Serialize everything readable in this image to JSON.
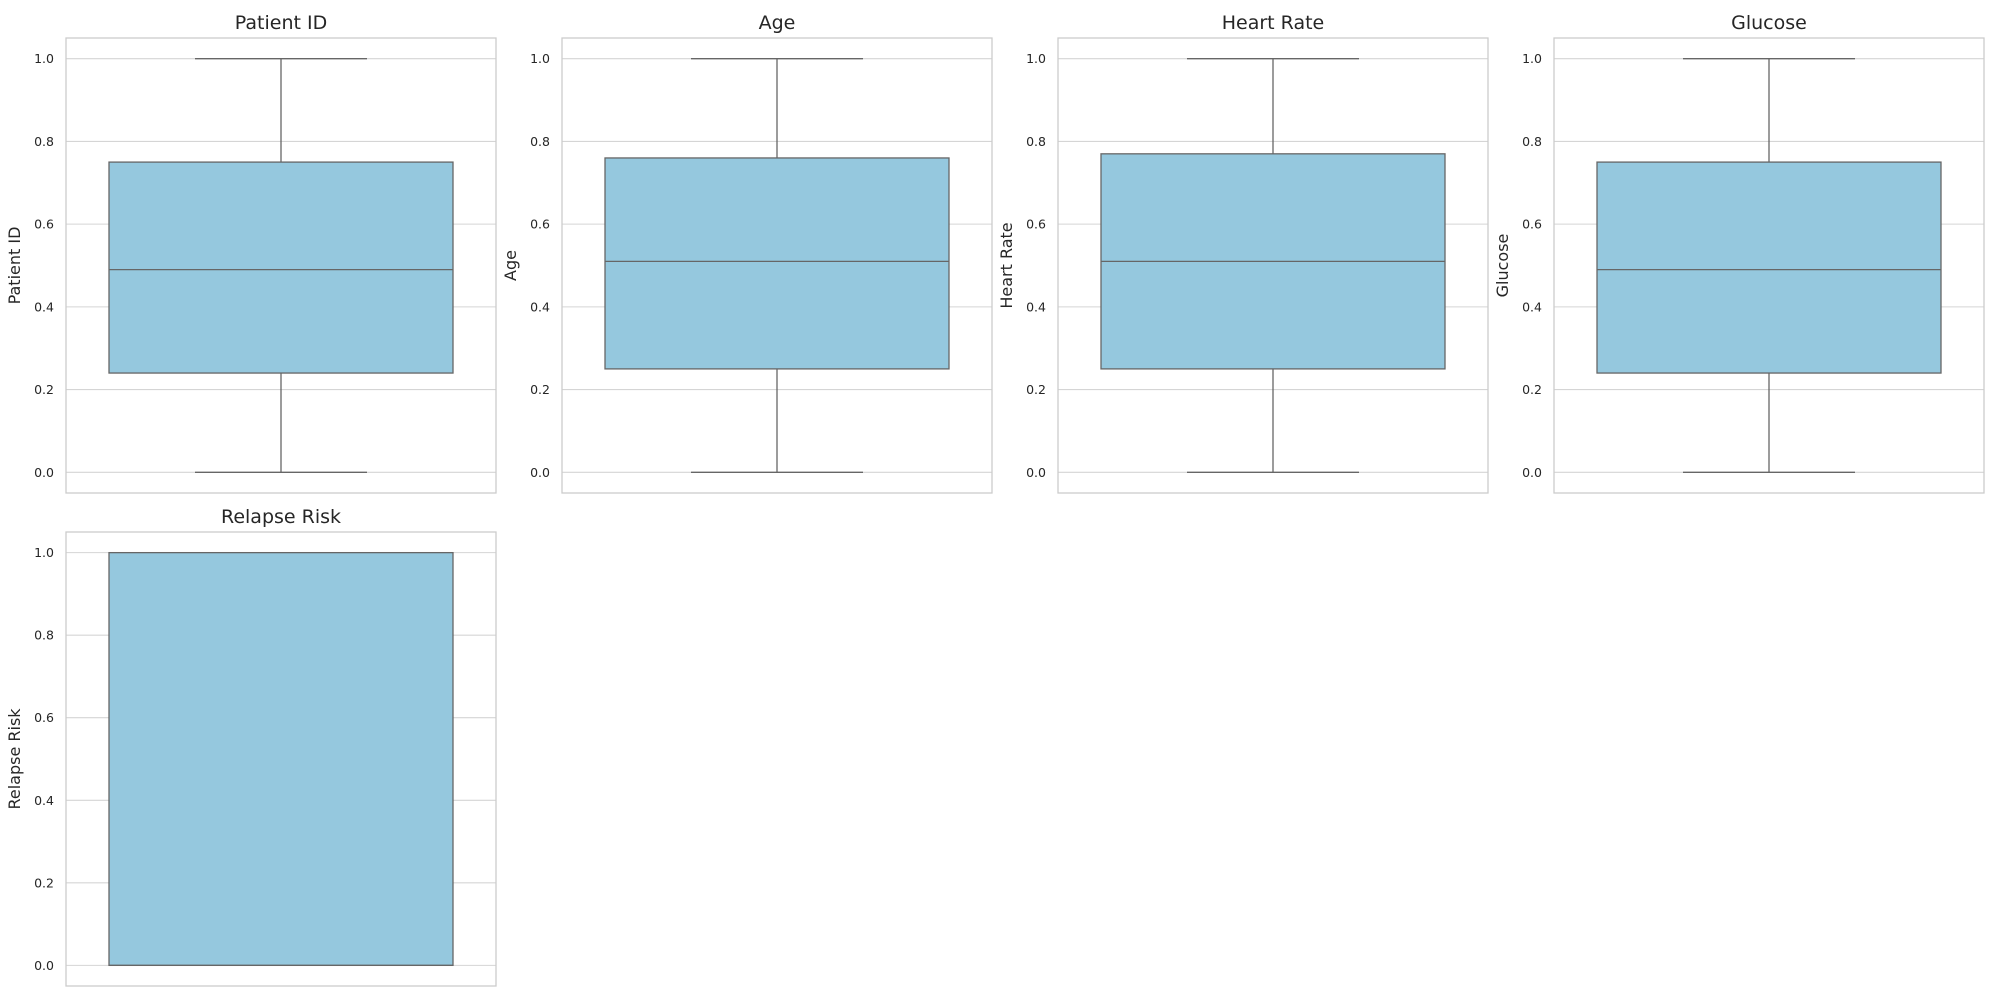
{
  "style": {
    "box_fill": "#95C8DE",
    "box_edge": "#666666",
    "grid_color": "#d5d5d5",
    "spine_color": "#cccccc"
  },
  "chart_data": [
    {
      "type": "box",
      "title": "Patient ID",
      "xlabel": "",
      "ylabel": "Patient ID",
      "ylim": [
        -0.05,
        1.05
      ],
      "yticks": [
        0.0,
        0.2,
        0.4,
        0.6,
        0.8,
        1.0
      ],
      "ytick_labels": [
        "0.0",
        "0.2",
        "0.4",
        "0.6",
        "0.8",
        "1.0"
      ],
      "grid": true,
      "whisker_low": 0.0,
      "q1": 0.24,
      "median": 0.49,
      "q3": 0.75,
      "whisker_high": 1.0
    },
    {
      "type": "box",
      "title": "Age",
      "xlabel": "",
      "ylabel": "Age",
      "ylim": [
        -0.05,
        1.05
      ],
      "yticks": [
        0.0,
        0.2,
        0.4,
        0.6,
        0.8,
        1.0
      ],
      "ytick_labels": [
        "0.0",
        "0.2",
        "0.4",
        "0.6",
        "0.8",
        "1.0"
      ],
      "grid": true,
      "whisker_low": 0.0,
      "q1": 0.25,
      "median": 0.51,
      "q3": 0.76,
      "whisker_high": 1.0
    },
    {
      "type": "box",
      "title": "Heart Rate",
      "xlabel": "",
      "ylabel": "Heart Rate",
      "ylim": [
        -0.05,
        1.05
      ],
      "yticks": [
        0.0,
        0.2,
        0.4,
        0.6,
        0.8,
        1.0
      ],
      "ytick_labels": [
        "0.0",
        "0.2",
        "0.4",
        "0.6",
        "0.8",
        "1.0"
      ],
      "grid": true,
      "whisker_low": 0.0,
      "q1": 0.25,
      "median": 0.51,
      "q3": 0.77,
      "whisker_high": 1.0
    },
    {
      "type": "box",
      "title": "Glucose",
      "xlabel": "",
      "ylabel": "Glucose",
      "ylim": [
        -0.05,
        1.05
      ],
      "yticks": [
        0.0,
        0.2,
        0.4,
        0.6,
        0.8,
        1.0
      ],
      "ytick_labels": [
        "0.0",
        "0.2",
        "0.4",
        "0.6",
        "0.8",
        "1.0"
      ],
      "grid": true,
      "whisker_low": 0.0,
      "q1": 0.24,
      "median": 0.49,
      "q3": 0.75,
      "whisker_high": 1.0
    },
    {
      "type": "box",
      "title": "Relapse Risk",
      "xlabel": "",
      "ylabel": "Relapse Risk",
      "ylim": [
        -0.05,
        1.05
      ],
      "yticks": [
        0.0,
        0.2,
        0.4,
        0.6,
        0.8,
        1.0
      ],
      "ytick_labels": [
        "0.0",
        "0.2",
        "0.4",
        "0.6",
        "0.8",
        "1.0"
      ],
      "grid": true,
      "whisker_low": 0.0,
      "q1": 0.0,
      "median": 0.0,
      "q3": 1.0,
      "whisker_high": 1.0
    }
  ]
}
